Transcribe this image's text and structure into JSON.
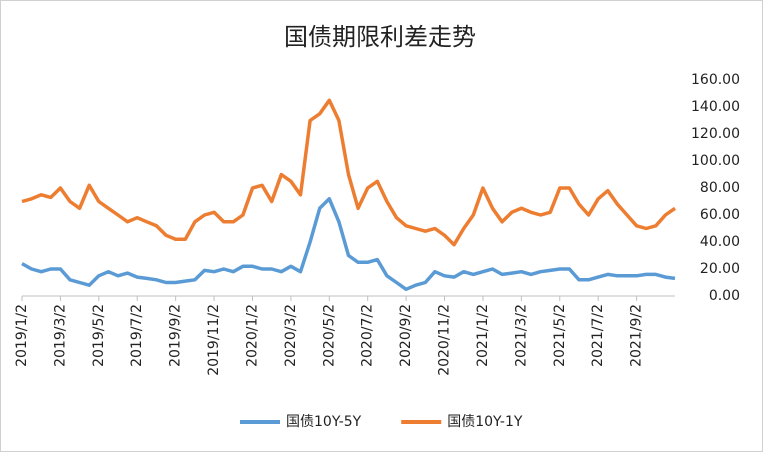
{
  "chart_data": {
    "type": "line",
    "title": "国债期限利差走势",
    "categories": [
      "2019/1/2",
      null,
      null,
      null,
      "2019/3/2",
      null,
      null,
      null,
      "2019/5/2",
      null,
      null,
      null,
      "2019/7/2",
      null,
      null,
      null,
      "2019/9/2",
      null,
      null,
      null,
      "2019/11/2",
      null,
      null,
      null,
      "2020/1/2",
      null,
      null,
      null,
      "2020/3/2",
      null,
      null,
      null,
      "2020/5/2",
      null,
      null,
      null,
      "2020/7/2",
      null,
      null,
      null,
      "2020/9/2",
      null,
      null,
      null,
      "2020/11/2",
      null,
      null,
      null,
      "2021/1/2",
      null,
      null,
      null,
      "2021/3/2",
      null,
      null,
      null,
      "2021/5/2",
      null,
      null,
      null,
      "2021/7/2",
      null,
      null,
      null,
      "2021/9/2",
      null,
      null,
      null,
      null
    ],
    "series": [
      {
        "name": "国债10Y-5Y",
        "color": "#5b9bd5",
        "values": [
          24,
          20,
          18,
          20,
          20,
          12,
          10,
          8,
          15,
          18,
          15,
          17,
          14,
          13,
          12,
          10,
          10,
          11,
          12,
          19,
          18,
          20,
          18,
          22,
          22,
          20,
          20,
          18,
          22,
          18,
          40,
          65,
          72,
          55,
          30,
          25,
          25,
          27,
          15,
          10,
          5,
          8,
          10,
          18,
          15,
          14,
          18,
          16,
          18,
          20,
          16,
          17,
          18,
          16,
          18,
          19,
          20,
          20,
          12,
          12,
          14,
          16,
          15,
          15,
          15,
          16,
          16,
          14,
          13
        ]
      },
      {
        "name": "国债10Y-1Y",
        "color": "#ed7d31",
        "values": [
          70,
          72,
          75,
          73,
          80,
          70,
          65,
          82,
          70,
          65,
          60,
          55,
          58,
          55,
          52,
          45,
          42,
          42,
          55,
          60,
          62,
          55,
          55,
          60,
          80,
          82,
          70,
          90,
          85,
          75,
          130,
          135,
          145,
          130,
          90,
          65,
          80,
          85,
          70,
          58,
          52,
          50,
          48,
          50,
          45,
          38,
          50,
          60,
          80,
          65,
          55,
          62,
          65,
          62,
          60,
          62,
          80,
          80,
          68,
          60,
          72,
          78,
          68,
          60,
          52,
          50,
          52,
          60,
          65
        ]
      }
    ],
    "ylim": [
      0,
      160
    ],
    "yticks": [
      {
        "value": 0,
        "label": "0.00"
      },
      {
        "value": 20,
        "label": "20.00"
      },
      {
        "value": 40,
        "label": "40.00"
      },
      {
        "value": 60,
        "label": "60.00"
      },
      {
        "value": 80,
        "label": "80.00"
      },
      {
        "value": 100,
        "label": "100.00"
      },
      {
        "value": 120,
        "label": "120.00"
      },
      {
        "value": 140,
        "label": "140.00"
      },
      {
        "value": 160,
        "label": "160.00"
      }
    ],
    "legend": "bottom"
  }
}
